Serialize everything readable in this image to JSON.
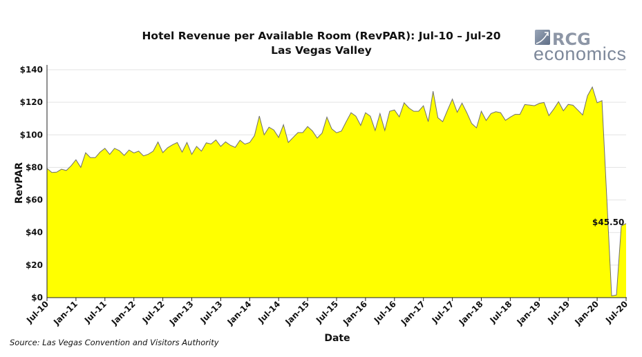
{
  "chart_data": {
    "type": "area",
    "title": "Hotel Revenue per Available Room (RevPAR): Jul-10 – Jul-20",
    "subtitle": "Las Vegas Valley",
    "xlabel": "Date",
    "ylabel": "RevPAR",
    "x_start": "Jul-10",
    "x_end": "Jul-20",
    "x_frequency": "monthly",
    "x_tick_labels": [
      "Jul-10",
      "Jan-11",
      "Jul-11",
      "Jan-12",
      "Jul-12",
      "Jan-13",
      "Jul-13",
      "Jan-14",
      "Jul-14",
      "Jan-15",
      "Jul-15",
      "Jan-16",
      "Jul-16",
      "Jan-17",
      "Jul-17",
      "Jan-18",
      "Jul-18",
      "Jan-19",
      "Jul-19",
      "Jan-20",
      "Jul-20"
    ],
    "y_tick_labels": [
      "$0",
      "$20",
      "$40",
      "$60",
      "$80",
      "$100",
      "$120",
      "$140"
    ],
    "ylim": [
      0,
      140
    ],
    "grid": "horizontal",
    "legend": "none",
    "fill_color": "#ffff00",
    "line_color": "#6e6e6e",
    "values": [
      79.4,
      76.9,
      77.1,
      78.9,
      78.1,
      81.0,
      84.7,
      80.0,
      89.0,
      86.0,
      86.0,
      89.4,
      91.7,
      88.0,
      91.7,
      90.3,
      87.4,
      90.7,
      88.9,
      90.0,
      87.1,
      88.1,
      90.0,
      95.6,
      89.1,
      92.1,
      93.9,
      95.3,
      89.4,
      95.3,
      88.0,
      92.9,
      90.0,
      95.1,
      94.4,
      96.9,
      92.9,
      95.7,
      93.6,
      92.3,
      96.7,
      94.3,
      95.3,
      99.6,
      111.6,
      100.0,
      104.7,
      103.0,
      98.4,
      106.2,
      95.3,
      98.4,
      101.4,
      101.4,
      105.1,
      102.4,
      98.0,
      101.1,
      110.9,
      103.7,
      101.3,
      102.3,
      108.1,
      113.6,
      111.5,
      105.8,
      113.6,
      111.5,
      102.7,
      113.1,
      102.7,
      114.5,
      115.3,
      111.1,
      119.7,
      116.5,
      114.5,
      114.5,
      117.9,
      108.1,
      126.8,
      110.5,
      108.1,
      115.2,
      122.0,
      113.9,
      119.5,
      113.6,
      107.0,
      104.3,
      114.5,
      108.8,
      113.1,
      114.2,
      113.6,
      108.9,
      110.9,
      112.6,
      112.6,
      118.6,
      118.3,
      117.9,
      119.3,
      119.9,
      111.8,
      115.8,
      120.4,
      114.8,
      118.7,
      118.2,
      115.2,
      112.2,
      124.0,
      129.4,
      119.7,
      121.0,
      61.0,
      1.1,
      1.6,
      44.1,
      45.5
    ],
    "annotations": [
      {
        "text": "$45.50",
        "x": "Jul-20",
        "y": 45.5
      }
    ]
  },
  "source": "Source: Las Vegas Convention and Visitors Authority",
  "logo": {
    "line1": "RCG",
    "line2": "economics"
  }
}
